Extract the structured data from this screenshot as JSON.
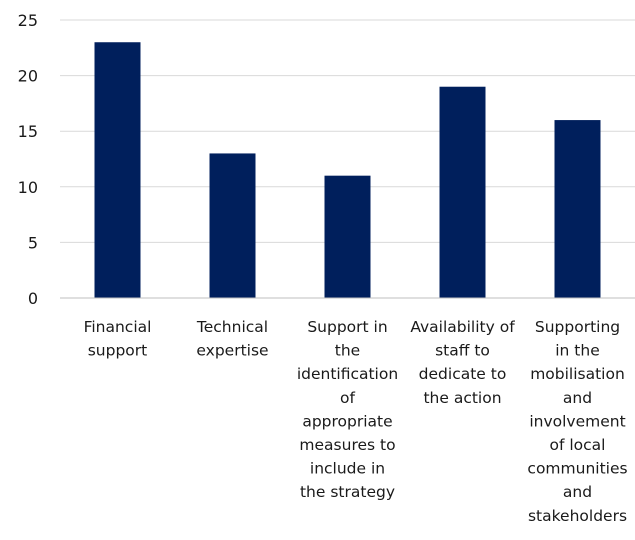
{
  "chart_data": {
    "type": "bar",
    "categories": [
      "Financial support",
      "Technical expertise",
      "Support in the identification of appropriate measures to include in the strategy",
      "Availability of staff to dedicate to the action",
      "Supporting in the mobilisation and involvement of local communities and stakeholders"
    ],
    "category_lines": [
      [
        "Financial",
        "support"
      ],
      [
        "Technical",
        "expertise"
      ],
      [
        "Support in",
        "the",
        "identification",
        "of",
        "appropriate",
        "measures to",
        "include in",
        "the strategy"
      ],
      [
        "Availability of",
        "staff to",
        "dedicate to",
        "the action"
      ],
      [
        "Supporting",
        "in the",
        "mobilisation",
        "and",
        "involvement",
        "of local",
        "communities",
        "and",
        "stakeholders"
      ]
    ],
    "values": [
      23,
      13,
      11,
      19,
      16
    ],
    "ylim": [
      0,
      25
    ],
    "yticks": [
      0,
      5,
      10,
      15,
      20,
      25
    ],
    "title": "",
    "xlabel": "",
    "ylabel": "",
    "grid": true,
    "legend": "none",
    "bar_color": "#001f5c"
  }
}
